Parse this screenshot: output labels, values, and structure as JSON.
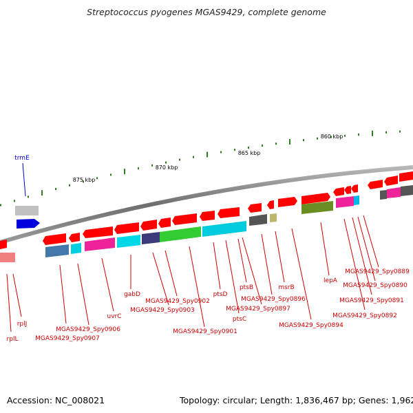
{
  "title": "Streptococcus pyogenes MGAS9429, complete genome",
  "footer": {
    "accession": "Accession: NC_008021",
    "summary": "Topology: circular; Length: 1,836,467 bp; Genes: 1,962"
  },
  "kbp_labels": [
    "860 kbp",
    "865 kbp",
    "870 kbp",
    "875 kbp"
  ],
  "colors": {
    "backbone": "#808080",
    "forward_gene": "#ff0000",
    "trmE_gene": "#0000dd",
    "ticks": "#2e7d1e",
    "gene_label": "#cc0000",
    "trmE_label": "#0000cc"
  },
  "gene_labels": [
    "trmE",
    "rplL",
    "rplJ",
    "MGAS9429_Spy0907",
    "MGAS9429_Spy0906",
    "uvrC",
    "gabD",
    "MGAS9429_Spy0903",
    "MGAS9429_Spy0902",
    "MGAS9429_Spy0901",
    "ptsD",
    "ptsC",
    "ptsB",
    "MGAS9429_Spy0897",
    "MGAS9429_Spy0896",
    "msrB",
    "MGAS9429_Spy0894",
    "lepA",
    "MGAS9429_Spy0892",
    "MGAS9429_Spy0891",
    "MGAS9429_Spy0890",
    "MGAS9429_Spy0889"
  ]
}
